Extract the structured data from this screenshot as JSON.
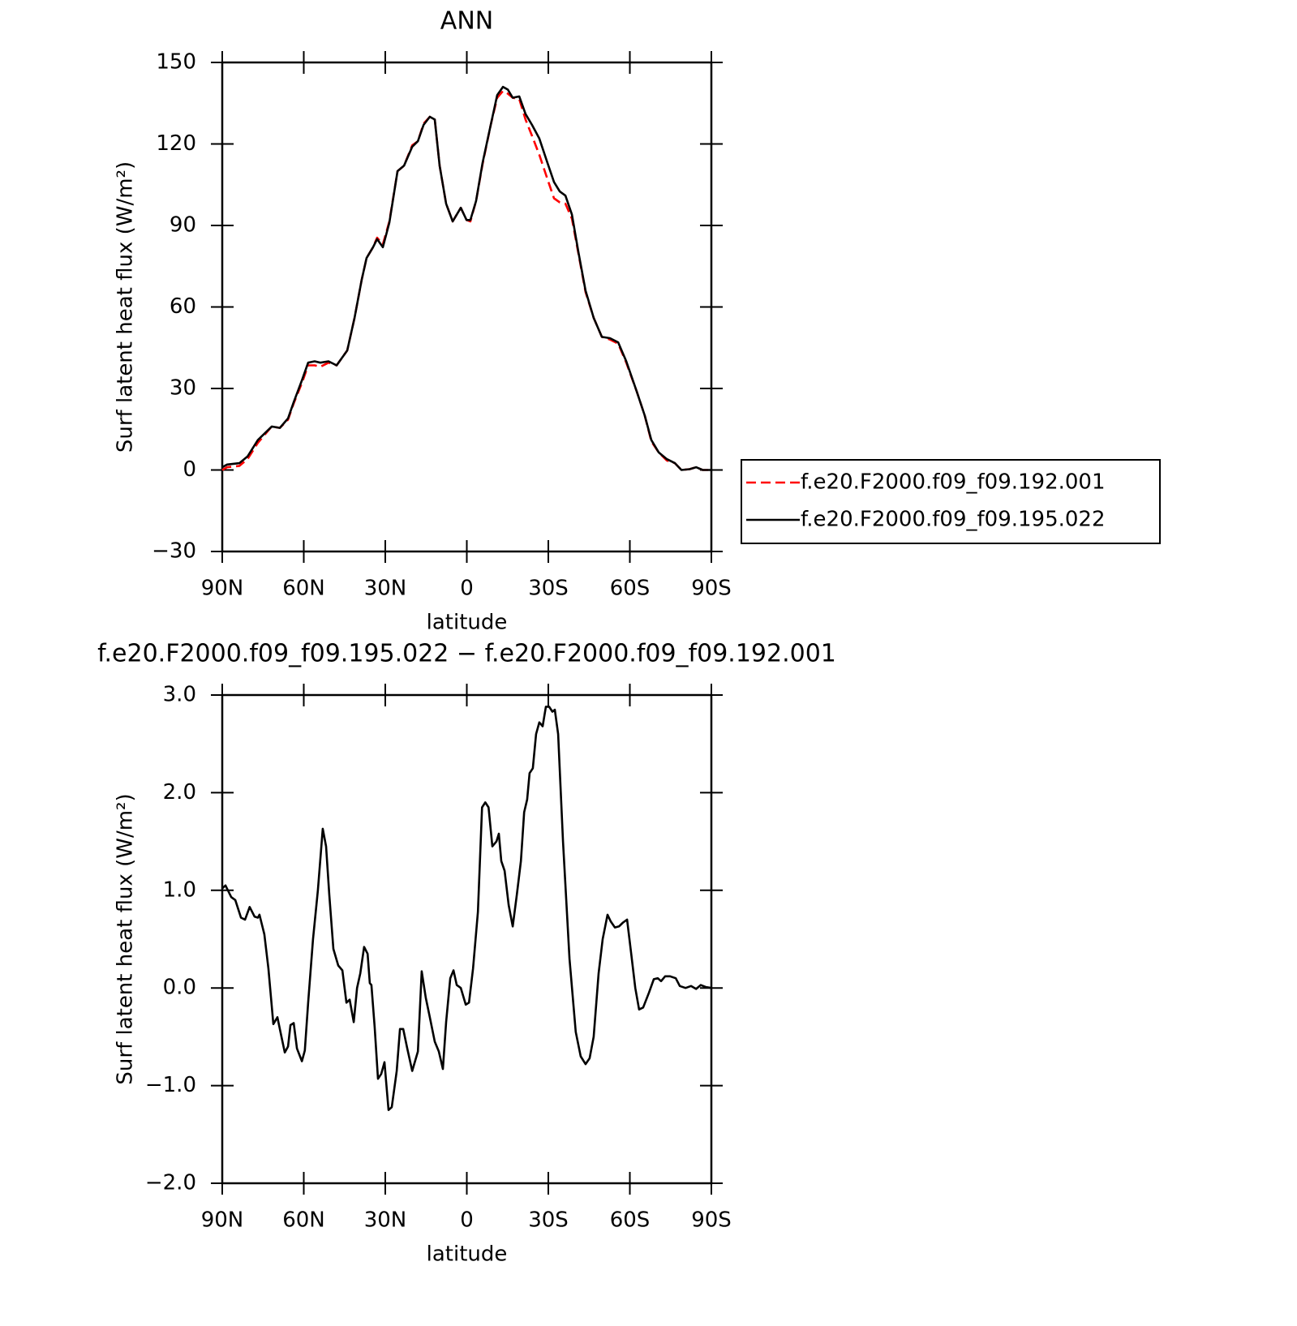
{
  "chart_data": [
    {
      "type": "line",
      "title": "ANN",
      "xlabel": "latitude",
      "ylabel": "Surf latent heat flux (W/m²)",
      "xlim": [
        90,
        -90
      ],
      "ylim": [
        -30,
        150
      ],
      "xticks": [
        {
          "value": 90,
          "label": "90N"
        },
        {
          "value": 60,
          "label": "60N"
        },
        {
          "value": 30,
          "label": "30N"
        },
        0,
        {
          "value": -30,
          "label": "30S"
        },
        {
          "value": -60,
          "label": "60S"
        },
        {
          "value": -90,
          "label": "90S"
        }
      ],
      "yticks": [
        {
          "value": -30,
          "label": "−30"
        },
        0,
        30,
        60,
        90,
        120,
        150
      ],
      "legend": "right",
      "x": [
        90,
        88.2,
        83.7,
        80.7,
        76.9,
        71.8,
        68.8,
        65.8,
        63.7,
        60.7,
        58.4,
        56,
        53.9,
        50.9,
        47.9,
        44,
        41.3,
        38.7,
        36.9,
        34.5,
        33,
        30.9,
        28.5,
        25.5,
        23.1,
        20.1,
        18,
        15.9,
        13.6,
        11.8,
        10,
        7.6,
        5.2,
        3.7,
        2.2,
        0.1,
        -1.3,
        -3.4,
        -5.8,
        -8.8,
        -11.2,
        -13.3,
        -15.1,
        -16.9,
        -19.3,
        -21.6,
        -24,
        -26.7,
        -29.7,
        -32.1,
        -34.2,
        -36.3,
        -38.7,
        -41.1,
        -43.7,
        -46.7,
        -49.7,
        -52.7,
        -55.7,
        -58.7,
        -62.5,
        -65.5,
        -67.9,
        -70.6,
        -73.6,
        -76.6,
        -79,
        -82,
        -84.4,
        -86.8,
        -90
      ],
      "series": [
        {
          "name": "f.e20.F2000.f09_f09.192.001",
          "color": "#ff0000",
          "dash": true,
          "values": [
            0,
            1,
            1.5,
            4,
            10,
            16,
            15.5,
            18.5,
            24.5,
            32,
            38.5,
            38.5,
            38,
            39.5,
            38.5,
            44,
            56,
            70,
            78,
            82,
            85.5,
            83,
            91.5,
            110,
            112,
            119.5,
            121,
            127.5,
            130,
            129,
            112,
            98,
            91.5,
            94,
            96.5,
            92,
            91.5,
            99,
            112.5,
            127,
            137,
            139.5,
            138.5,
            137,
            136.5,
            129,
            123,
            116,
            107,
            100,
            98.5,
            98,
            92.5,
            79.5,
            65.5,
            56,
            49,
            48,
            46.5,
            39.5,
            29,
            20,
            10.5,
            6.5,
            3.5,
            2.5,
            0,
            0.3,
            1,
            0,
            0
          ]
        },
        {
          "name": "f.e20.F2000.f09_f09.195.022",
          "color": "#000000",
          "dash": false,
          "values": [
            1,
            2,
            2.5,
            5,
            11,
            16,
            15.5,
            19,
            25,
            33,
            39.5,
            40,
            39.5,
            40,
            38.5,
            44,
            56,
            70,
            78,
            82,
            85,
            82,
            91,
            110,
            112,
            119,
            121,
            127,
            130,
            129,
            112,
            98,
            91.5,
            94,
            96.5,
            92,
            92,
            99,
            113,
            127,
            138,
            141,
            140,
            137,
            137.5,
            131,
            127,
            122,
            113,
            106,
            102.5,
            101,
            94,
            80,
            66,
            56,
            49,
            48.5,
            47,
            40,
            29,
            20,
            11,
            6.5,
            4,
            2.5,
            0,
            0.3,
            1,
            0,
            0
          ]
        }
      ]
    },
    {
      "type": "line",
      "title": "f.e20.F2000.f09_f09.195.022 − f.e20.F2000.f09_f09.192.001",
      "xlabel": "latitude",
      "ylabel": "Surf latent heat flux (W/m²)",
      "xlim": [
        90,
        -90
      ],
      "ylim": [
        -2,
        3
      ],
      "xticks": [
        {
          "value": 90,
          "label": "90N"
        },
        {
          "value": 60,
          "label": "60N"
        },
        {
          "value": 30,
          "label": "30N"
        },
        0,
        {
          "value": -30,
          "label": "30S"
        },
        {
          "value": -60,
          "label": "60S"
        },
        {
          "value": -90,
          "label": "90S"
        }
      ],
      "yticks": [
        {
          "value": -2,
          "label": "−2.0"
        },
        {
          "value": -1,
          "label": "−1.0"
        },
        {
          "value": 0,
          "label": "0.0"
        },
        {
          "value": 1,
          "label": "1.0"
        },
        {
          "value": 2,
          "label": "2.0"
        },
        {
          "value": 3,
          "label": "3.0"
        }
      ],
      "x": [
        90,
        88.8,
        86.7,
        85.2,
        83.1,
        81.6,
        79.9,
        78.1,
        76.9,
        76.3,
        74.5,
        73,
        71.2,
        69.7,
        68.2,
        67,
        65.8,
        64.9,
        63.7,
        62.5,
        60.7,
        59.6,
        58.4,
        56.6,
        54.8,
        53,
        51.8,
        50.6,
        49.1,
        47.3,
        45.8,
        44.3,
        43.1,
        41.6,
        40.4,
        39.2,
        37.8,
        36.5,
        35.7,
        35.1,
        33.9,
        32.7,
        31.5,
        30.3,
        28.8,
        27.6,
        25.8,
        24.6,
        23.4,
        21.9,
        20.1,
        18,
        16.6,
        15.1,
        13.6,
        11.8,
        10.3,
        8.8,
        7.6,
        6.1,
        4.9,
        3.7,
        2.2,
        0.4,
        -0.8,
        -2.3,
        -4.1,
        -5.6,
        -6.8,
        -8,
        -9.4,
        -10.9,
        -11.8,
        -12.7,
        -13.9,
        -15.4,
        -16.9,
        -18.4,
        -19.9,
        -21.1,
        -22.2,
        -23.1,
        -24.3,
        -25.5,
        -26.7,
        -27.9,
        -29.1,
        -30.3,
        -31.5,
        -32.4,
        -33.6,
        -35.4,
        -37.8,
        -40.1,
        -41.9,
        -43.7,
        -45.2,
        -46.7,
        -48.5,
        -50,
        -51.8,
        -53,
        -54.5,
        -56,
        -57.5,
        -59,
        -60.5,
        -62,
        -63.4,
        -64.9,
        -67,
        -68.8,
        -70.3,
        -71.5,
        -73,
        -74.8,
        -76.9,
        -78.4,
        -80.5,
        -82.5,
        -84.4,
        -86.1,
        -87.9,
        -90
      ],
      "series": [
        {
          "color": "#000000",
          "dash": false,
          "values": [
            1.02,
            1.05,
            0.93,
            0.9,
            0.72,
            0.7,
            0.83,
            0.73,
            0.72,
            0.75,
            0.55,
            0.2,
            -0.37,
            -0.3,
            -0.5,
            -0.66,
            -0.6,
            -0.38,
            -0.36,
            -0.62,
            -0.75,
            -0.64,
            -0.15,
            0.5,
            1.0,
            1.63,
            1.45,
            0.95,
            0.4,
            0.23,
            0.18,
            -0.15,
            -0.12,
            -0.35,
            0.0,
            0.15,
            0.42,
            0.35,
            0.05,
            0.03,
            -0.4,
            -0.93,
            -0.88,
            -0.76,
            -1.25,
            -1.22,
            -0.85,
            -0.42,
            -0.42,
            -0.62,
            -0.85,
            -0.65,
            0.17,
            -0.1,
            -0.3,
            -0.55,
            -0.65,
            -0.83,
            -0.35,
            0.1,
            0.18,
            0.03,
            0.0,
            -0.17,
            -0.15,
            0.2,
            0.78,
            1.85,
            1.9,
            1.85,
            1.45,
            1.5,
            1.58,
            1.3,
            1.2,
            0.85,
            0.63,
            0.95,
            1.3,
            1.8,
            1.93,
            2.2,
            2.25,
            2.6,
            2.72,
            2.68,
            2.88,
            2.88,
            2.83,
            2.85,
            2.6,
            1.5,
            0.3,
            -0.45,
            -0.7,
            -0.78,
            -0.72,
            -0.5,
            0.15,
            0.5,
            0.75,
            0.68,
            0.62,
            0.63,
            0.67,
            0.7,
            0.35,
            0.0,
            -0.22,
            -0.2,
            -0.05,
            0.09,
            0.1,
            0.07,
            0.12,
            0.12,
            0.1,
            0.02,
            0.0,
            0.02,
            -0.01,
            0.03,
            0.01,
            0.0
          ]
        }
      ]
    }
  ]
}
